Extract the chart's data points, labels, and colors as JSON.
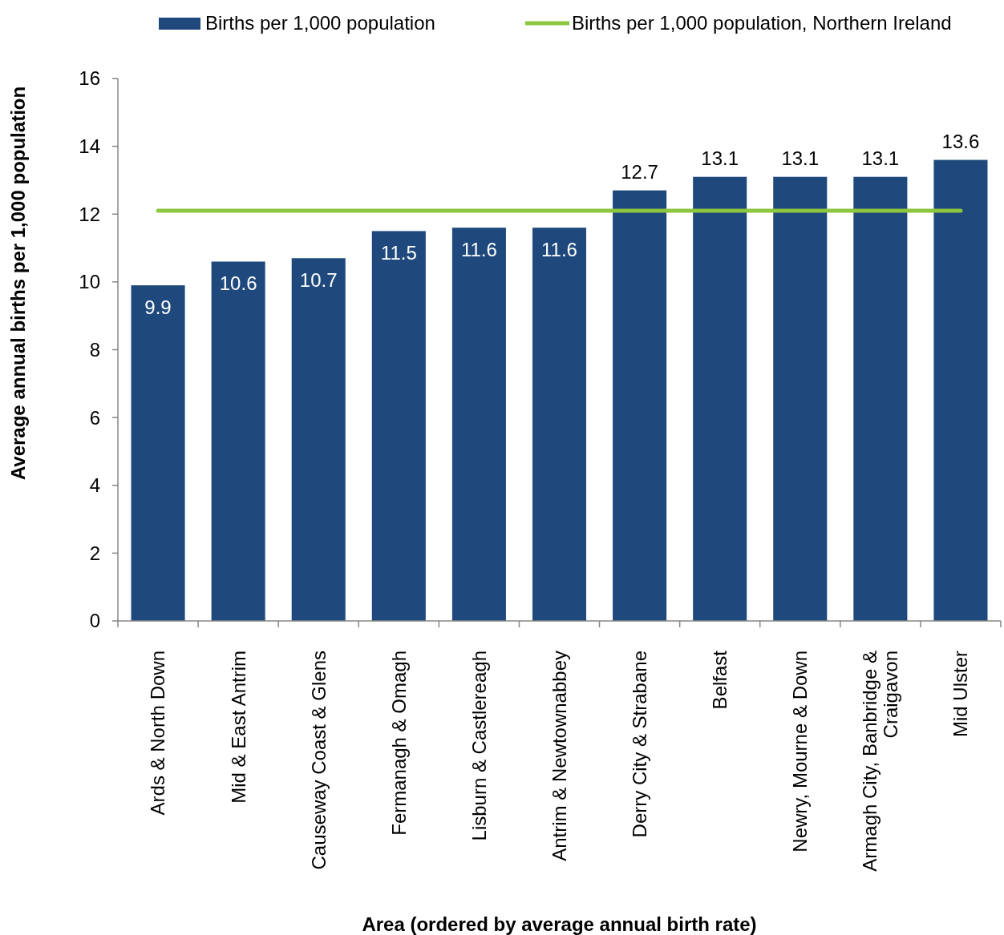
{
  "chart_data": {
    "type": "bar",
    "xlabel": "Area (ordered by average annual birth rate)",
    "ylabel": "Average annual births per 1,000 population",
    "categories": [
      "Ards & North Down",
      "Mid & East Antrim",
      "Causeway Coast & Glens",
      "Fermanagh & Omagh",
      "Lisburn & Castlereagh",
      "Antrim & Newtownabbey",
      "Derry City & Strabane",
      "Belfast",
      "Newry, Mourne & Down",
      "Armagh City, Banbridge &\nCraigavon",
      "Mid Ulster"
    ],
    "series": [
      {
        "name": "Births per 1,000 population",
        "color": "#1f497d",
        "values": [
          9.9,
          10.6,
          10.7,
          11.5,
          11.6,
          11.6,
          12.7,
          13.1,
          13.1,
          13.1,
          13.6
        ],
        "value_labels": [
          "9.9",
          "10.6",
          "10.7",
          "11.5",
          "11.6",
          "11.6",
          "12.7",
          "13.1",
          "13.1",
          "13.1",
          "13.6"
        ]
      },
      {
        "name": "Births per 1,000 population, Northern Ireland",
        "type": "line",
        "color": "#8dc63f",
        "values": [
          12.1,
          12.1,
          12.1,
          12.1,
          12.1,
          12.1,
          12.1,
          12.1,
          12.1,
          12.1,
          12.1
        ]
      }
    ],
    "ylim": [
      0,
      16
    ],
    "yticks": [
      0,
      2,
      4,
      6,
      8,
      10,
      12,
      14,
      16
    ],
    "grid": false,
    "legend": "top",
    "marker": "none",
    "line_style": "solid"
  }
}
